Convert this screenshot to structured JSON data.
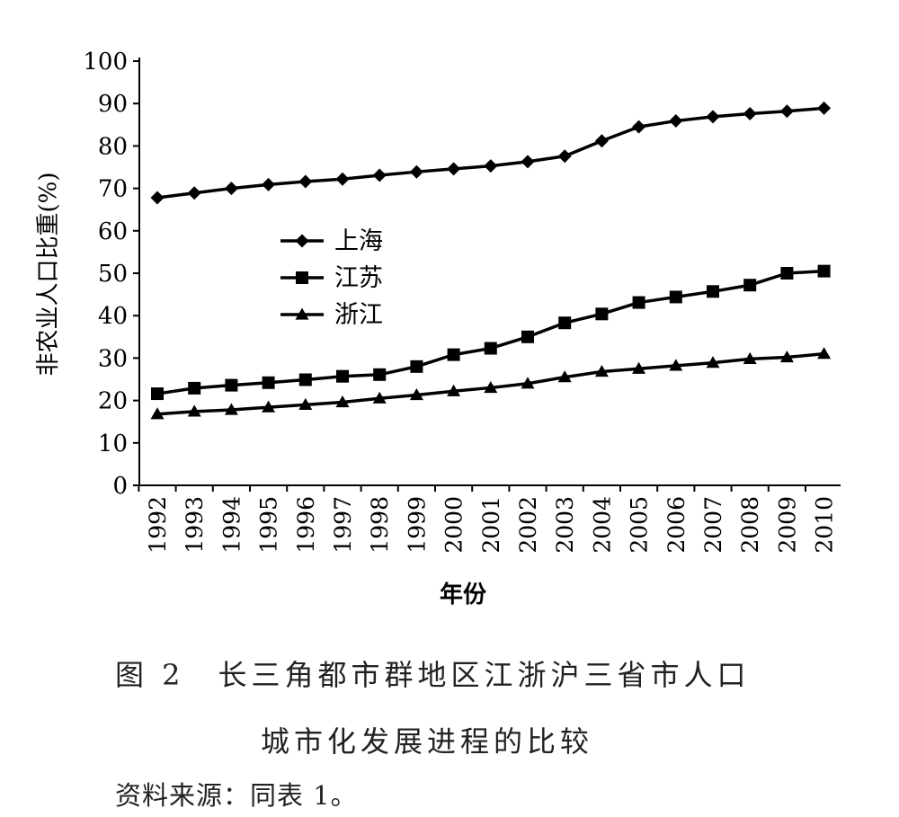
{
  "chart_data": {
    "type": "line",
    "xlabel": "年份",
    "ylabel": "非农业人口比重(%)",
    "ylim": [
      0,
      100
    ],
    "yticks": [
      "0",
      "10",
      "20",
      "30",
      "40",
      "50",
      "60",
      "70",
      "80",
      "90",
      "100"
    ],
    "x": [
      "1992",
      "1993",
      "1994",
      "1995",
      "1996",
      "1997",
      "1998",
      "1999",
      "2000",
      "2001",
      "2002",
      "2003",
      "2004",
      "2005",
      "2006",
      "2007",
      "2008",
      "2009",
      "2010"
    ],
    "grid": false,
    "legend": "center-left",
    "series": [
      {
        "name": "上海",
        "marker": "diamond",
        "values": [
          67.8,
          68.9,
          70.0,
          70.9,
          71.6,
          72.2,
          73.1,
          73.9,
          74.6,
          75.3,
          76.3,
          77.6,
          81.2,
          84.5,
          85.9,
          86.9,
          87.6,
          88.2,
          88.9
        ]
      },
      {
        "name": "江苏",
        "marker": "square",
        "values": [
          21.6,
          22.9,
          23.6,
          24.2,
          24.9,
          25.7,
          26.1,
          28.0,
          30.8,
          32.3,
          35.0,
          38.3,
          40.4,
          43.1,
          44.4,
          45.7,
          47.2,
          50.0,
          50.5
        ]
      },
      {
        "name": "浙江",
        "marker": "triangle",
        "values": [
          16.8,
          17.4,
          17.8,
          18.4,
          19.0,
          19.6,
          20.5,
          21.3,
          22.2,
          23.0,
          24.0,
          25.5,
          26.8,
          27.5,
          28.2,
          28.9,
          29.8,
          30.2,
          31.0
        ]
      }
    ]
  },
  "caption": {
    "line1": "图 2　长三角都市群地区江浙沪三省市人口",
    "line2": "城市化发展进程的比较",
    "source": "资料来源：同表 1。"
  }
}
